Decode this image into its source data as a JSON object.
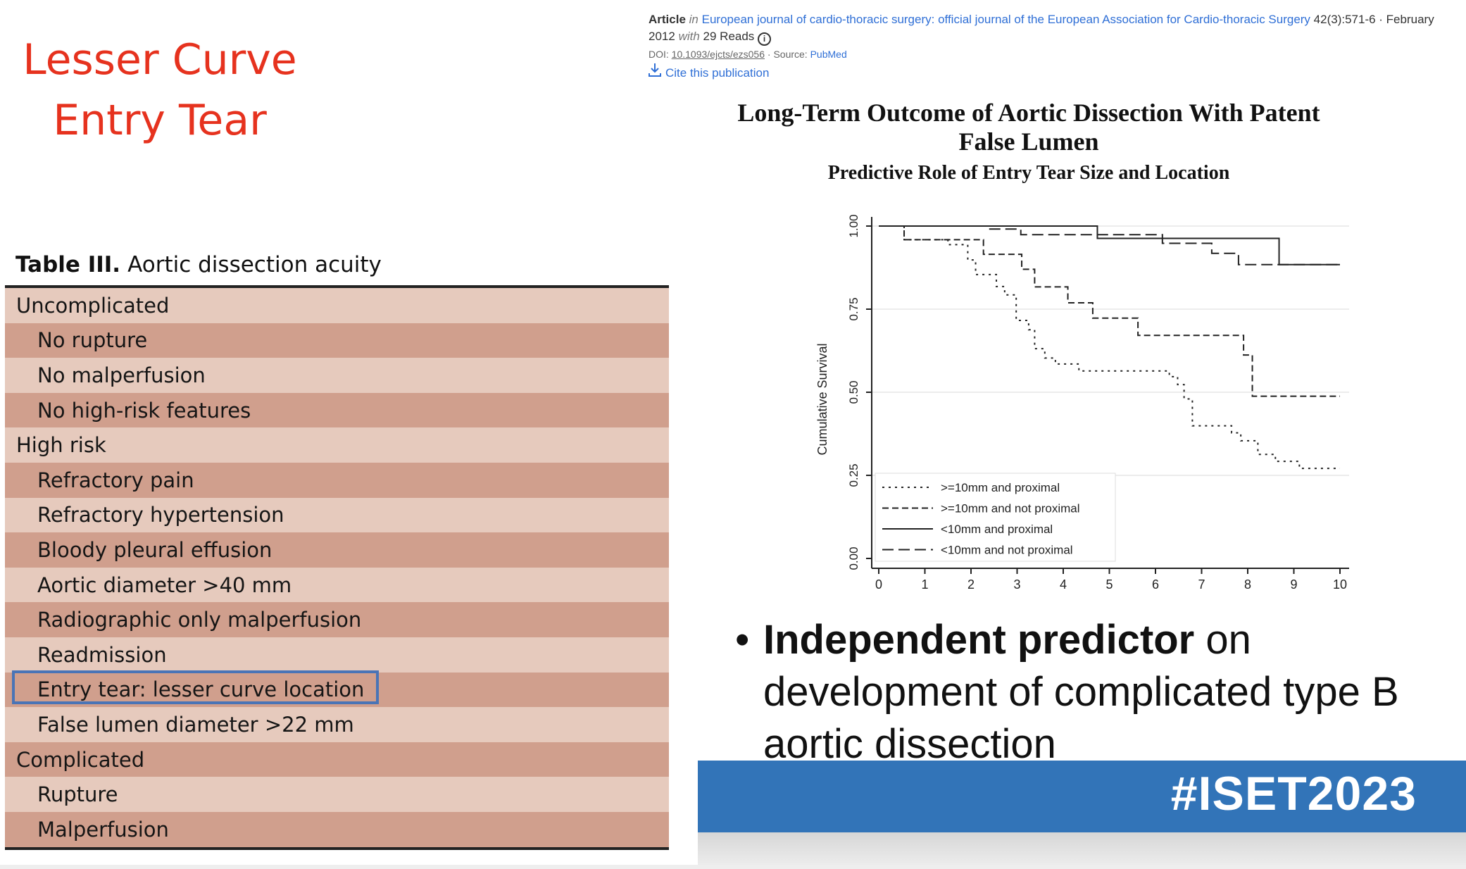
{
  "slide": {
    "title_lines": [
      "Lesser Curve",
      "Entry Tear"
    ],
    "title_color": "#e6321e",
    "hashtag": "#ISET2023",
    "band_color": "#3274b8"
  },
  "table": {
    "label": "Table III.",
    "title": "Aortic dissection acuity",
    "row_colors": [
      "#e6cabd",
      "#d09f8d"
    ],
    "highlight_color": "#4a74b6",
    "rows": [
      {
        "text": "Uncomplicated",
        "level": "category"
      },
      {
        "text": "No rupture",
        "level": "item"
      },
      {
        "text": "No malperfusion",
        "level": "item"
      },
      {
        "text": "No high-risk features",
        "level": "item"
      },
      {
        "text": "High risk",
        "level": "category"
      },
      {
        "text": "Refractory pain",
        "level": "item"
      },
      {
        "text": "Refractory hypertension",
        "level": "item"
      },
      {
        "text": "Bloody pleural effusion",
        "level": "item"
      },
      {
        "text": "Aortic diameter >40 mm",
        "level": "item"
      },
      {
        "text": "Radiographic only malperfusion",
        "level": "item"
      },
      {
        "text": "Readmission",
        "level": "item"
      },
      {
        "text": "Entry tear: lesser curve location",
        "level": "item",
        "highlighted": true
      },
      {
        "text": "False lumen diameter >22 mm",
        "level": "item"
      },
      {
        "text": "Complicated",
        "level": "category"
      },
      {
        "text": "Rupture",
        "level": "item"
      },
      {
        "text": "Malperfusion",
        "level": "item"
      }
    ]
  },
  "article": {
    "type": "Article",
    "in": "in",
    "journal": "European journal of cardio-thoracic surgery: official journal of the European Association for Cardio-thoracic Surgery",
    "citation": "42(3):571-6 · February",
    "year": "2012",
    "with": "with",
    "reads": "29 Reads",
    "info_icon": "info-icon",
    "doi_label": "DOI:",
    "doi": "10.1093/ejcts/ezs056",
    "source_label": "· Source:",
    "source": "PubMed",
    "cite_icon": "download-icon",
    "cite_label": "Cite this publication",
    "link_color": "#2f6fd6"
  },
  "paper": {
    "title_line1": "Long-Term Outcome of Aortic Dissection With Patent",
    "title_line2": "False Lumen",
    "subtitle": "Predictive Role of Entry Tear Size and Location"
  },
  "bullet": {
    "bold": "Independent predictor",
    "rest_line1": " on",
    "line2": "development of complicated type B",
    "line3": "aortic dissection"
  },
  "chart_data": {
    "type": "line",
    "step": true,
    "ylabel": "Cumulative Survival",
    "xlabel": "",
    "xlim": [
      0,
      10
    ],
    "ylim": [
      0,
      1
    ],
    "x_ticks": [
      "0",
      "1",
      "2",
      "3",
      "4",
      "5",
      "6",
      "7",
      "8",
      "9",
      "10"
    ],
    "y_ticks": [
      "0.00",
      "0.25",
      "0.50",
      "0.75",
      "1.00"
    ],
    "grid": true,
    "legend_position": "bottom-left",
    "series": [
      {
        "name": ">=10mm and proximal",
        "style": "dotted",
        "x": [
          0,
          0.55,
          1.5,
          1.93,
          2.1,
          2.55,
          2.73,
          2.98,
          3.25,
          3.38,
          3.6,
          3.83,
          4.34,
          6.3,
          6.48,
          6.62,
          6.8,
          7.65,
          7.85,
          8.22,
          8.6,
          9.12,
          10
        ],
        "y": [
          1.0,
          0.959,
          0.944,
          0.898,
          0.854,
          0.818,
          0.793,
          0.716,
          0.688,
          0.631,
          0.603,
          0.585,
          0.564,
          0.547,
          0.523,
          0.48,
          0.399,
          0.378,
          0.354,
          0.313,
          0.292,
          0.271,
          0.271
        ]
      },
      {
        "name": ">=10mm and not proximal",
        "style": "short-dash",
        "x": [
          0,
          0.55,
          2.27,
          3.1,
          3.38,
          4.1,
          4.64,
          5.62,
          7.91,
          8.1,
          10
        ],
        "y": [
          1.0,
          0.959,
          0.915,
          0.87,
          0.817,
          0.769,
          0.723,
          0.671,
          0.612,
          0.488,
          0.488
        ]
      },
      {
        "name": "<10mm and proximal",
        "style": "solid",
        "x": [
          0,
          4.74,
          8.68,
          10
        ],
        "y": [
          1.0,
          0.963,
          0.884,
          0.884
        ]
      },
      {
        "name": "<10mm and not proximal",
        "style": "long-dash",
        "x": [
          0,
          2.39,
          3.08,
          6.15,
          7.22,
          7.8,
          10
        ],
        "y": [
          1.0,
          0.991,
          0.974,
          0.948,
          0.918,
          0.884,
          0.884
        ]
      }
    ]
  }
}
